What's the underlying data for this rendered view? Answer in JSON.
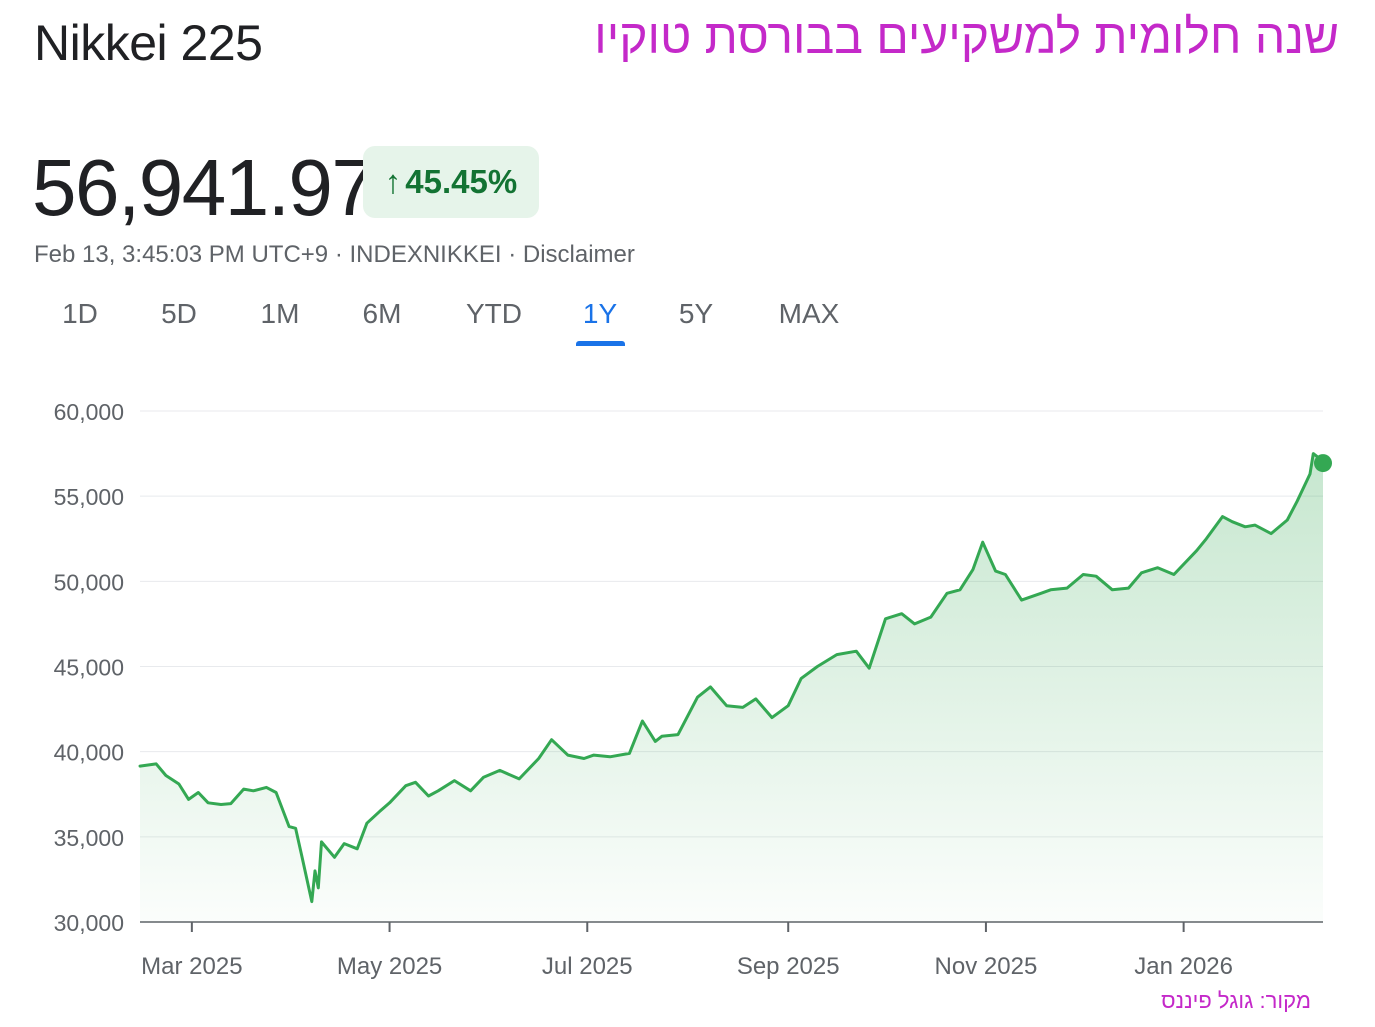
{
  "header": {
    "index_name": "Nikkei 225",
    "headline": "שנה חלומית למשקיעים בבורסת טוקיו"
  },
  "quote": {
    "price": "56,941.97",
    "change": "45.45%",
    "change_direction": "up",
    "timestamp": "Feb 13, 3:45:03 PM UTC+9",
    "exchange": "INDEXNIKKEI",
    "disclaimer": "Disclaimer",
    "separator": " · "
  },
  "tabs": [
    {
      "label": "1D",
      "active": false
    },
    {
      "label": "5D",
      "active": false
    },
    {
      "label": "1M",
      "active": false
    },
    {
      "label": "6M",
      "active": false
    },
    {
      "label": "YTD",
      "active": false
    },
    {
      "label": "1Y",
      "active": true
    },
    {
      "label": "5Y",
      "active": false
    },
    {
      "label": "MAX",
      "active": false
    }
  ],
  "source_note": "מקור: גוגל פיננס",
  "colors": {
    "line": "#34a853",
    "area_top": "#34a853",
    "positive": "#137333",
    "badge_bg": "#e6f4ea",
    "accent": "#1a73e8",
    "headline": "#c429c9",
    "grid": "#e8eaed"
  },
  "chart_data": {
    "type": "area",
    "title": "",
    "xlabel": "",
    "ylabel": "",
    "ylim": [
      30000,
      60000
    ],
    "y_ticks": [
      30000,
      35000,
      40000,
      45000,
      50000,
      55000,
      60000
    ],
    "y_tick_labels": [
      "30,000",
      "35,000",
      "40,000",
      "45,000",
      "50,000",
      "55,000",
      "60,000"
    ],
    "x_range": [
      "2025-02-13",
      "2026-02-13"
    ],
    "x_ticks": [
      {
        "date": "2025-03-01",
        "label": "Mar 2025"
      },
      {
        "date": "2025-05-01",
        "label": "May 2025"
      },
      {
        "date": "2025-07-01",
        "label": "Jul 2025"
      },
      {
        "date": "2025-09-01",
        "label": "Sep 2025"
      },
      {
        "date": "2025-11-01",
        "label": "Nov 2025"
      },
      {
        "date": "2026-01-01",
        "label": "Jan 2026"
      }
    ],
    "grid": true,
    "series": [
      {
        "x": [
          "2025-02-13",
          "2025-02-18",
          "2025-02-21",
          "2025-02-25",
          "2025-02-28",
          "2025-03-03",
          "2025-03-06",
          "2025-03-10",
          "2025-03-13",
          "2025-03-17",
          "2025-03-20",
          "2025-03-24",
          "2025-03-27",
          "2025-03-31",
          "2025-04-02",
          "2025-04-04",
          "2025-04-07",
          "2025-04-08",
          "2025-04-09",
          "2025-04-10",
          "2025-04-14",
          "2025-04-17",
          "2025-04-21",
          "2025-04-24",
          "2025-04-28",
          "2025-05-01",
          "2025-05-06",
          "2025-05-09",
          "2025-05-13",
          "2025-05-16",
          "2025-05-21",
          "2025-05-26",
          "2025-05-30",
          "2025-06-04",
          "2025-06-10",
          "2025-06-16",
          "2025-06-20",
          "2025-06-25",
          "2025-06-30",
          "2025-07-03",
          "2025-07-08",
          "2025-07-14",
          "2025-07-18",
          "2025-07-22",
          "2025-07-24",
          "2025-07-29",
          "2025-08-04",
          "2025-08-08",
          "2025-08-13",
          "2025-08-18",
          "2025-08-22",
          "2025-08-27",
          "2025-09-01",
          "2025-09-05",
          "2025-09-10",
          "2025-09-16",
          "2025-09-22",
          "2025-09-26",
          "2025-10-01",
          "2025-10-06",
          "2025-10-10",
          "2025-10-15",
          "2025-10-20",
          "2025-10-24",
          "2025-10-28",
          "2025-10-31",
          "2025-11-04",
          "2025-11-07",
          "2025-11-12",
          "2025-11-18",
          "2025-11-21",
          "2025-11-26",
          "2025-12-01",
          "2025-12-05",
          "2025-12-10",
          "2025-12-15",
          "2025-12-19",
          "2025-12-24",
          "2025-12-29",
          "2026-01-05",
          "2026-01-08",
          "2026-01-13",
          "2026-01-16",
          "2026-01-20",
          "2026-01-23",
          "2026-01-28",
          "2026-02-02",
          "2026-02-05",
          "2026-02-09",
          "2026-02-10",
          "2026-02-12",
          "2026-02-13"
        ],
        "values": [
          39150,
          39280,
          38600,
          38100,
          37200,
          37600,
          37000,
          36900,
          36950,
          37800,
          37700,
          37900,
          37600,
          35600,
          35500,
          33800,
          31200,
          33000,
          32000,
          34700,
          33800,
          34600,
          34300,
          35800,
          36500,
          37000,
          38000,
          38200,
          37400,
          37700,
          38300,
          37700,
          38500,
          38900,
          38400,
          39600,
          40700,
          39800,
          39600,
          39800,
          39700,
          39900,
          41800,
          40600,
          40900,
          41000,
          43200,
          43800,
          42700,
          42600,
          43100,
          42000,
          42700,
          44300,
          45000,
          45700,
          45900,
          44900,
          47800,
          48100,
          47500,
          47900,
          49300,
          49500,
          50700,
          52300,
          50600,
          50400,
          48900,
          49300,
          49500,
          49600,
          50400,
          50300,
          49500,
          49600,
          50500,
          50800,
          50400,
          51800,
          52500,
          53800,
          53500,
          53200,
          53300,
          52800,
          53600,
          54700,
          56300,
          57500,
          57200,
          56941.97
        ]
      }
    ],
    "last_value": 56941.97
  }
}
